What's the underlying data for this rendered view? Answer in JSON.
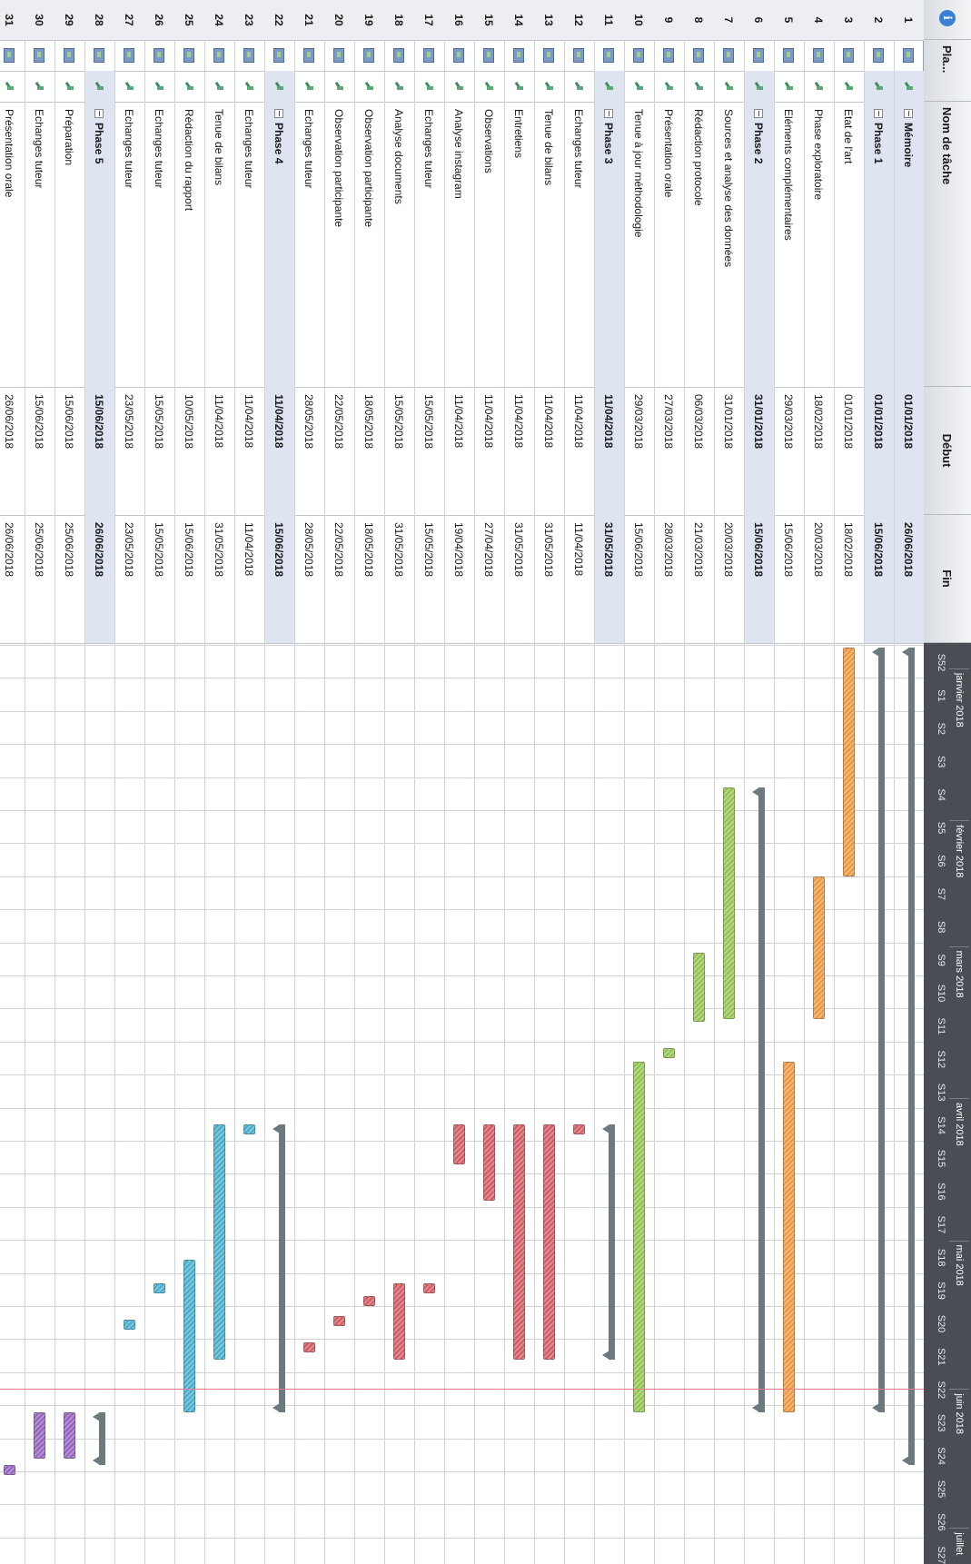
{
  "header": {
    "info_symbol": "i",
    "planning_col": "Pla...",
    "name_col": "Nom de tâche",
    "start_col": "Début",
    "end_col": "Fin"
  },
  "timeline": {
    "months": [
      {
        "label": "janvier 2018"
      },
      {
        "label": "février 2018"
      },
      {
        "label": "mars 2018"
      },
      {
        "label": "avril 2018"
      },
      {
        "label": "mai 2018"
      },
      {
        "label": "juin 2018"
      },
      {
        "label": "juillet"
      }
    ],
    "weeks": [
      "S52",
      "S1",
      "S2",
      "S3",
      "S4",
      "S5",
      "S6",
      "S7",
      "S8",
      "S9",
      "S10",
      "S11",
      "S12",
      "S13",
      "S14",
      "S15",
      "S16",
      "S17",
      "S18",
      "S19",
      "S20",
      "S21",
      "S22",
      "S23",
      "S24",
      "S25",
      "S26",
      "S27"
    ],
    "today_line_color": "#f07a86"
  },
  "colors": {
    "orange": "#f4a04a",
    "green": "#9ccc5a",
    "red": "#d9636b",
    "blue": "#4fb6d4",
    "purple": "#9b6bc6",
    "summary": "#6c7a80",
    "group_band": "#dfe4f1"
  },
  "tasks": [
    {
      "num": "1",
      "name": "Mémoire",
      "start": "01/01/2018",
      "end": "26/06/2018",
      "group": true,
      "start_week": 0.98,
      "end_week": 25.7,
      "color": "summary"
    },
    {
      "num": "2",
      "name": "Phase 1",
      "start": "01/01/2018",
      "end": "15/06/2018",
      "group": true,
      "start_week": 0.98,
      "end_week": 24.1,
      "color": "summary"
    },
    {
      "num": "3",
      "name": "Etat de l'art",
      "start": "01/01/2018",
      "end": "18/02/2018",
      "group": false,
      "start_week": 0.98,
      "end_week": 7.9,
      "color": "orange"
    },
    {
      "num": "4",
      "name": "Phase exploratoire",
      "start": "18/02/2018",
      "end": "20/03/2018",
      "group": false,
      "start_week": 7.9,
      "end_week": 12.2,
      "color": "orange"
    },
    {
      "num": "5",
      "name": "Eléments complémentaires",
      "start": "29/03/2018",
      "end": "15/06/2018",
      "group": false,
      "start_week": 13.5,
      "end_week": 24.1,
      "color": "orange"
    },
    {
      "num": "6",
      "name": "Phase 2",
      "start": "31/01/2018",
      "end": "15/06/2018",
      "group": true,
      "start_week": 5.2,
      "end_week": 24.1,
      "color": "summary"
    },
    {
      "num": "7",
      "name": "Sources et analyse des données",
      "start": "31/01/2018",
      "end": "20/03/2018",
      "group": false,
      "start_week": 5.2,
      "end_week": 12.2,
      "color": "green"
    },
    {
      "num": "8",
      "name": "Rédaction protocole",
      "start": "06/03/2018",
      "end": "21/03/2018",
      "group": false,
      "start_week": 10.2,
      "end_week": 12.3,
      "color": "green"
    },
    {
      "num": "9",
      "name": "Présentation orale",
      "start": "27/03/2018",
      "end": "28/03/2018",
      "group": false,
      "start_week": 13.1,
      "end_week": 13.4,
      "color": "green"
    },
    {
      "num": "10",
      "name": "Tenue à jour méthodologie",
      "start": "29/03/2018",
      "end": "15/06/2018",
      "group": false,
      "start_week": 13.5,
      "end_week": 24.1,
      "color": "green"
    },
    {
      "num": "11",
      "name": "Phase 3",
      "start": "11/04/2018",
      "end": "31/05/2018",
      "group": true,
      "start_week": 15.4,
      "end_week": 22.5,
      "color": "summary"
    },
    {
      "num": "12",
      "name": "Echanges tuteur",
      "start": "11/04/2018",
      "end": "11/04/2018",
      "group": false,
      "start_week": 15.4,
      "end_week": 15.7,
      "color": "red"
    },
    {
      "num": "13",
      "name": "Tenue de bilans",
      "start": "11/04/2018",
      "end": "31/05/2018",
      "group": false,
      "start_week": 15.4,
      "end_week": 22.5,
      "color": "red"
    },
    {
      "num": "14",
      "name": "Entretiens",
      "start": "11/04/2018",
      "end": "31/05/2018",
      "group": false,
      "start_week": 15.4,
      "end_week": 22.5,
      "color": "red"
    },
    {
      "num": "15",
      "name": "Observations",
      "start": "11/04/2018",
      "end": "27/04/2018",
      "group": false,
      "start_week": 15.4,
      "end_week": 17.7,
      "color": "red"
    },
    {
      "num": "16",
      "name": "Analyse instagram",
      "start": "11/04/2018",
      "end": "19/04/2018",
      "group": false,
      "start_week": 15.4,
      "end_week": 16.6,
      "color": "red"
    },
    {
      "num": "17",
      "name": "Echanges tuteur",
      "start": "15/05/2018",
      "end": "15/05/2018",
      "group": false,
      "start_week": 20.2,
      "end_week": 20.5,
      "color": "red"
    },
    {
      "num": "18",
      "name": "Analyse documents",
      "start": "15/05/2018",
      "end": "31/05/2018",
      "group": false,
      "start_week": 20.2,
      "end_week": 22.5,
      "color": "red"
    },
    {
      "num": "19",
      "name": "Observation participante",
      "start": "18/05/2018",
      "end": "18/05/2018",
      "group": false,
      "start_week": 20.6,
      "end_week": 20.9,
      "color": "red"
    },
    {
      "num": "20",
      "name": "Observation participante",
      "start": "22/05/2018",
      "end": "22/05/2018",
      "group": false,
      "start_week": 21.2,
      "end_week": 21.5,
      "color": "red"
    },
    {
      "num": "21",
      "name": "Echanges tuteur",
      "start": "28/05/2018",
      "end": "28/05/2018",
      "group": false,
      "start_week": 22.0,
      "end_week": 22.3,
      "color": "red"
    },
    {
      "num": "22",
      "name": "Phase 4",
      "start": "11/04/2018",
      "end": "15/06/2018",
      "group": true,
      "start_week": 15.4,
      "end_week": 24.1,
      "color": "summary"
    },
    {
      "num": "23",
      "name": "Echanges tuteur",
      "start": "11/04/2018",
      "end": "11/04/2018",
      "group": false,
      "start_week": 15.4,
      "end_week": 15.7,
      "color": "blue"
    },
    {
      "num": "24",
      "name": "Tenue de bilans",
      "start": "11/04/2018",
      "end": "31/05/2018",
      "group": false,
      "start_week": 15.4,
      "end_week": 22.5,
      "color": "blue"
    },
    {
      "num": "25",
      "name": "Rédaction du rapport",
      "start": "10/05/2018",
      "end": "15/06/2018",
      "group": false,
      "start_week": 19.5,
      "end_week": 24.1,
      "color": "blue"
    },
    {
      "num": "26",
      "name": "Echanges tuteur",
      "start": "15/05/2018",
      "end": "15/05/2018",
      "group": false,
      "start_week": 20.2,
      "end_week": 20.5,
      "color": "blue"
    },
    {
      "num": "27",
      "name": "Echanges tuteur",
      "start": "23/05/2018",
      "end": "23/05/2018",
      "group": false,
      "start_week": 21.3,
      "end_week": 21.6,
      "color": "blue"
    },
    {
      "num": "28",
      "name": "Phase 5",
      "start": "15/06/2018",
      "end": "26/06/2018",
      "group": true,
      "start_week": 24.1,
      "end_week": 25.7,
      "color": "summary"
    },
    {
      "num": "29",
      "name": "Préparation",
      "start": "15/06/2018",
      "end": "25/06/2018",
      "group": false,
      "start_week": 24.1,
      "end_week": 25.5,
      "color": "purple"
    },
    {
      "num": "30",
      "name": "Echanges tuteur",
      "start": "15/06/2018",
      "end": "25/06/2018",
      "group": false,
      "start_week": 24.1,
      "end_week": 25.5,
      "color": "purple"
    },
    {
      "num": "31",
      "name": "Présentation orale",
      "start": "26/06/2018",
      "end": "26/06/2018",
      "group": false,
      "start_week": 25.7,
      "end_week": 26.0,
      "color": "purple"
    }
  ],
  "today_week": 23.4
}
